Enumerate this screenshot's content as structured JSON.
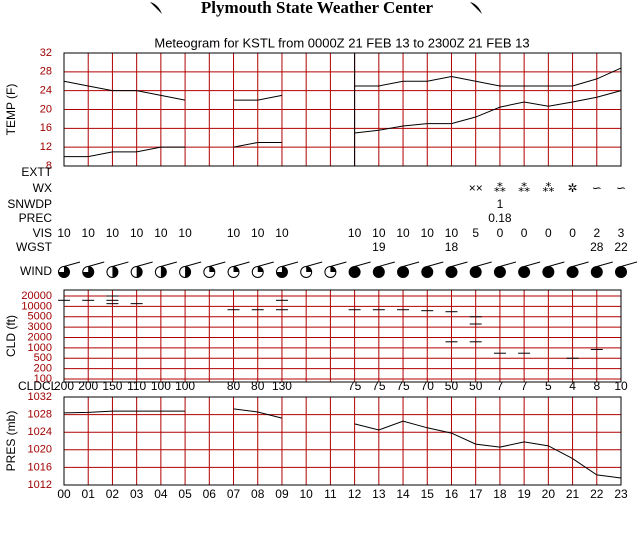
{
  "header": {
    "title": "Plymouth State Weather Center"
  },
  "chart_data": {
    "type": "meteogram",
    "title": "Meteogram for KSTL from 0000Z 21 FEB 13 to 2300Z 21 FEB 13",
    "hours": [
      "00",
      "01",
      "02",
      "03",
      "04",
      "05",
      "06",
      "07",
      "08",
      "09",
      "10",
      "11",
      "12",
      "13",
      "14",
      "15",
      "16",
      "17",
      "18",
      "19",
      "20",
      "21",
      "22",
      "23"
    ],
    "temp": {
      "label": "TEMP (F)",
      "ylim": [
        8,
        32
      ],
      "yticks": [
        8,
        12,
        16,
        20,
        24,
        28,
        32
      ],
      "series": [
        {
          "name": "temperature",
          "values": [
            26,
            25,
            24,
            24,
            23,
            22,
            null,
            22,
            22,
            23,
            null,
            null,
            25,
            25,
            26,
            26,
            27,
            26,
            25,
            25,
            25,
            25,
            26.5,
            28.8
          ]
        },
        {
          "name": "dewpoint",
          "values": [
            10,
            10,
            11,
            11,
            12,
            12,
            null,
            12,
            13,
            13,
            null,
            null,
            15,
            15.6,
            16.5,
            17,
            17,
            18.4,
            20.5,
            21.6,
            20.7,
            21.6,
            22.6,
            24
          ]
        }
      ]
    },
    "rows": {
      "extt": {
        "label": "EXTT",
        "values": [
          null,
          null,
          null,
          null,
          null,
          null,
          null,
          null,
          null,
          null,
          null,
          null,
          null,
          null,
          null,
          null,
          null,
          null,
          null,
          null,
          null,
          null,
          null,
          null
        ]
      },
      "wx": {
        "label": "WX",
        "values": [
          null,
          null,
          null,
          null,
          null,
          null,
          null,
          null,
          null,
          null,
          null,
          null,
          null,
          null,
          null,
          null,
          null,
          "××",
          "⁂",
          "⁂",
          "⁂",
          "✲",
          "∽",
          "∽"
        ]
      },
      "snwdp": {
        "label": "SNWDP",
        "values": [
          null,
          null,
          null,
          null,
          null,
          null,
          null,
          null,
          null,
          null,
          null,
          null,
          null,
          null,
          null,
          null,
          null,
          null,
          1,
          null,
          null,
          null,
          null,
          null
        ]
      },
      "prec": {
        "label": "PREC",
        "values": [
          null,
          null,
          null,
          null,
          null,
          null,
          null,
          null,
          null,
          null,
          null,
          null,
          null,
          null,
          null,
          null,
          null,
          null,
          0.18,
          null,
          null,
          null,
          null,
          null
        ]
      },
      "vis": {
        "label": "VIS",
        "values": [
          10,
          10,
          10,
          10,
          10,
          10,
          null,
          10,
          10,
          10,
          null,
          null,
          10,
          10,
          10,
          10,
          10,
          5,
          0,
          0,
          0,
          0,
          2,
          3
        ]
      },
      "wgst": {
        "label": "WGST",
        "values": [
          null,
          null,
          null,
          null,
          null,
          null,
          null,
          null,
          null,
          null,
          null,
          null,
          null,
          19,
          null,
          null,
          18,
          null,
          null,
          null,
          null,
          null,
          28,
          22
        ]
      }
    },
    "wind": {
      "label": "WIND",
      "sky_cover": [
        0.75,
        0.75,
        0.5,
        0.5,
        0.5,
        0.5,
        0.25,
        0.25,
        0.25,
        0.75,
        0.25,
        0.25,
        1,
        1,
        1,
        1,
        1,
        1,
        1,
        1,
        1,
        1,
        1,
        1
      ]
    },
    "cloud": {
      "label": "CLD (ft)",
      "yticks": [
        20000,
        10000,
        5000,
        3000,
        2000,
        1000,
        500,
        200,
        100
      ],
      "layers": [
        [
          15000
        ],
        [
          15000
        ],
        [
          20000,
          15000,
          12000
        ],
        [
          12000
        ],
        [],
        [],
        [],
        [
          8000
        ],
        [
          8000
        ],
        [
          15000,
          8000
        ],
        [],
        [],
        [
          8000
        ],
        [
          8000
        ],
        [
          8000
        ],
        [
          7500
        ],
        [
          7000,
          1500
        ],
        [
          5000,
          3500,
          1500
        ],
        [
          700
        ],
        [
          700
        ],
        [],
        [
          500
        ],
        [
          900
        ],
        []
      ],
      "ceiling_label": "CLDCL",
      "ceiling": [
        200,
        200,
        150,
        110,
        100,
        100,
        null,
        80,
        80,
        130,
        null,
        null,
        75,
        75,
        75,
        70,
        50,
        50,
        7,
        7,
        5,
        4,
        8,
        10
      ]
    },
    "pressure": {
      "label": "PRES (mb)",
      "ylim": [
        1012,
        1032
      ],
      "yticks": [
        1012,
        1016,
        1020,
        1024,
        1028,
        1032
      ],
      "values": [
        1028.4,
        1028.5,
        1028.8,
        1028.8,
        1028.8,
        1028.8,
        null,
        1029.3,
        1028.6,
        1027.2,
        null,
        null,
        1025.9,
        1024.5,
        1026.5,
        1025,
        1023.8,
        1021.3,
        1020.6,
        1021.8,
        1020.9,
        1018,
        1014.3,
        1013.6
      ]
    }
  }
}
